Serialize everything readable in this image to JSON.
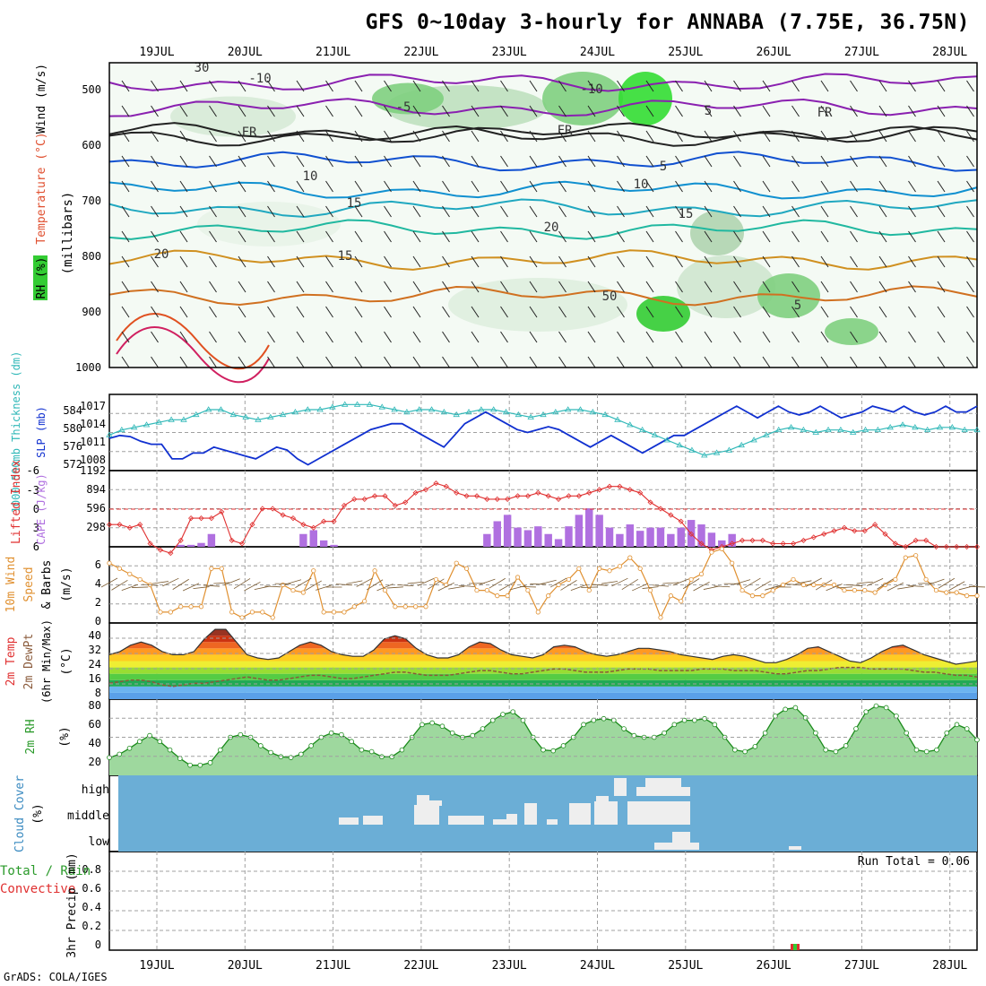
{
  "title": "GFS 0~10day 3-hourly for ANNABA (7.75E, 36.75N)",
  "footer": "GrADS: COLA/IGES",
  "dates": [
    "19JUL",
    "20JUL",
    "21JUL",
    "22JUL",
    "23JUL",
    "24JUL",
    "25JUL",
    "26JUL",
    "27JUL",
    "28JUL"
  ],
  "colors": {
    "frame": "#000000",
    "grid": "#a0a0a0",
    "rh": "#33cc33",
    "temp": "#e08020",
    "cape": "#b070e0",
    "li": "#e03030",
    "slp": "#1030d0",
    "thick": "#30b8b8",
    "wind": "#e09030",
    "cloud_bg": "#6baed6",
    "cloud": "#eeeeee"
  },
  "panels": {
    "upper": {
      "ylabel_rh": "RH (%)",
      "ylabel_temp": "Temperature (°C)",
      "ylabel_wind": "Wind (m/s)",
      "ylabel_p": "(millibars)",
      "p_ticks": [
        "500",
        "600",
        "700",
        "800",
        "900",
        "1000"
      ],
      "contour_labels": [
        "-10",
        "-10",
        "-5",
        "5",
        "FR",
        "FR",
        "FR",
        "5",
        "10",
        "10",
        "15",
        "15",
        "20",
        "20",
        "15",
        "5",
        "30",
        "50"
      ]
    },
    "slp": {
      "ylabel_left": "1000-500mb Thickness (dm)",
      "ylabel_right": "SLP (mb)",
      "ticks_left": [
        "584",
        "580",
        "576",
        "572"
      ],
      "ticks_right": [
        "1017",
        "1014",
        "1011",
        "1008"
      ]
    },
    "cape": {
      "ylabel_left": "Lifted Index",
      "ylabel_right": "CAPE (J/kg)",
      "ticks_left": [
        "-3",
        "0",
        "3",
        "6"
      ],
      "ticks_right": [
        "1192",
        "894",
        "596",
        "298"
      ],
      "top_left_tick": "-6"
    },
    "wind": {
      "ylabel_a": "10m Wind",
      "ylabel_b": "Speed",
      "ylabel_c": "& Barbs",
      "ylabel_d": "(m/s)",
      "ticks": [
        "6",
        "4",
        "2",
        "0"
      ]
    },
    "temp": {
      "ylabel_a": "2m Temp",
      "ylabel_b": "2m DewPt",
      "ylabel_c": "(6hr Min/Max)",
      "ylabel_d": "(°C)",
      "ticks": [
        "40",
        "32",
        "24",
        "16",
        "8"
      ]
    },
    "rh2m": {
      "ylabel_a": "2m RH",
      "ylabel_b": "(%)",
      "ticks": [
        "80",
        "60",
        "40",
        "20"
      ]
    },
    "cloud": {
      "ylabel_a": "Cloud Cover",
      "ylabel_b": "(%)",
      "levels": [
        "high",
        "middle",
        "low"
      ]
    },
    "precip": {
      "ylabel_a": "Total / Rain",
      "ylabel_b": "Convective",
      "ylabel_c": "3hr Precip (mm)",
      "ticks": [
        "0.8",
        "0.6",
        "0.4",
        "0.2",
        "0"
      ],
      "run_total": "Run Total = 0.06"
    }
  },
  "chart_data": [
    {
      "type": "area",
      "name": "2m RH",
      "x_unit": "3-hourly steps from 18JUL 18Z",
      "ylim": [
        0,
        90
      ],
      "values": [
        21,
        25,
        32,
        40,
        47,
        40,
        30,
        20,
        12,
        12,
        15,
        30,
        45,
        48,
        45,
        35,
        27,
        22,
        21,
        25,
        35,
        45,
        50,
        48,
        40,
        30,
        28,
        22,
        22,
        30,
        45,
        60,
        62,
        58,
        50,
        45,
        47,
        55,
        65,
        72,
        75,
        65,
        45,
        30,
        29,
        35,
        45,
        60,
        65,
        67,
        65,
        55,
        47,
        45,
        45,
        50,
        60,
        65,
        65,
        67,
        60,
        45,
        30,
        28,
        34,
        50,
        70,
        78,
        80,
        68,
        50,
        30,
        28,
        35,
        55,
        75,
        82,
        80,
        70,
        50,
        30,
        28,
        30,
        50,
        60,
        55,
        42
      ]
    },
    {
      "type": "line",
      "name": "10m Wind Speed",
      "ylim": [
        0,
        7
      ],
      "values": [
        5.5,
        5,
        4.5,
        4,
        3.5,
        1,
        1,
        1.5,
        1.5,
        1.5,
        5,
        5,
        1,
        0.5,
        1,
        1,
        0.5,
        3.5,
        3,
        2.8,
        4.8,
        1,
        1,
        1,
        1.5,
        2,
        4.8,
        3,
        1.5,
        1.5,
        1.5,
        1.5,
        4,
        3.5,
        5.5,
        5,
        3,
        3,
        2.5,
        2.5,
        4.2,
        3,
        1,
        2.5,
        3.5,
        4,
        5,
        3,
        5,
        4.8,
        5.2,
        6,
        5,
        3,
        0.5,
        2.5,
        2,
        4,
        4.5,
        6.5,
        6.8,
        5.5,
        3,
        2.5,
        2.5,
        3,
        3.5,
        4,
        3.5,
        3.5,
        3.5,
        3.5,
        3,
        3,
        3,
        2.8,
        3.5,
        4,
        6,
        6.2,
        4,
        3,
        2.8,
        2.8,
        2.5,
        2.5
      ]
    },
    {
      "type": "line",
      "name": "Lifted Index",
      "ylim": [
        -6,
        6
      ],
      "values": [
        2.5,
        2.5,
        3,
        2.5,
        5.5,
        6.5,
        7,
        5,
        1.5,
        1.5,
        1.5,
        0.5,
        5,
        5.5,
        2.5,
        0,
        0,
        1,
        1.5,
        2.5,
        3,
        2,
        2,
        -0.5,
        -1.5,
        -1.5,
        -2,
        -2,
        -0.5,
        -1,
        -2.5,
        -3,
        -4,
        -3.5,
        -2.5,
        -2,
        -2,
        -1.5,
        -1.5,
        -1.5,
        -2,
        -2,
        -2.5,
        -2,
        -1.5,
        -2,
        -2,
        -2.5,
        -3,
        -3.5,
        -3.5,
        -3,
        -2.5,
        -1,
        0,
        1,
        2,
        4,
        5.5,
        6.5,
        6,
        5.5,
        5,
        5,
        5,
        5.5,
        5.5,
        5.5,
        5,
        4.5,
        4,
        3.5,
        3,
        3.5,
        3.5,
        2.5,
        4,
        5.5,
        6,
        5,
        5,
        6,
        6,
        6,
        6,
        6
      ]
    },
    {
      "type": "bar",
      "name": "CAPE",
      "ylim": [
        0,
        1192
      ],
      "values": [
        0,
        0,
        0,
        0,
        0,
        0,
        0,
        30,
        30,
        60,
        200,
        0,
        0,
        0,
        0,
        0,
        0,
        0,
        0,
        200,
        260,
        100,
        30,
        0,
        0,
        0,
        0,
        0,
        0,
        0,
        0,
        0,
        0,
        0,
        0,
        0,
        0,
        200,
        400,
        500,
        300,
        260,
        320,
        200,
        120,
        320,
        500,
        600,
        500,
        300,
        200,
        350,
        250,
        300,
        300,
        200,
        300,
        420,
        350,
        220,
        100,
        200,
        0,
        0,
        0,
        0,
        0,
        0,
        0,
        0,
        0,
        0,
        0,
        0,
        0,
        0,
        0,
        0,
        0,
        0,
        0,
        0,
        0,
        0,
        0,
        0
      ]
    },
    {
      "type": "line",
      "name": "SLP",
      "ylim": [
        1006,
        1019
      ],
      "values": [
        1011.5,
        1012,
        1011.8,
        1011,
        1010.5,
        1010.5,
        1008,
        1008,
        1009,
        1009,
        1010,
        1009.5,
        1009,
        1008.5,
        1008,
        1009,
        1010,
        1009.5,
        1008,
        1007,
        1008,
        1009,
        1010,
        1011,
        1012,
        1013,
        1013.5,
        1014,
        1014,
        1013,
        1012,
        1011,
        1010,
        1012,
        1014,
        1015,
        1016,
        1015,
        1014,
        1013,
        1012.5,
        1013,
        1013.5,
        1013,
        1012,
        1011,
        1010,
        1011,
        1012,
        1011,
        1010,
        1009,
        1010,
        1011,
        1012,
        1012,
        1013,
        1014,
        1015,
        1016,
        1017,
        1016,
        1015,
        1016,
        1017,
        1016,
        1015.5,
        1016,
        1017,
        1016,
        1015,
        1015.5,
        1016,
        1017,
        1016.5,
        1016,
        1017,
        1016,
        1015.5,
        1016,
        1017,
        1016,
        1016,
        1017
      ]
    },
    {
      "type": "line",
      "name": "1000-500mb Thickness",
      "ylim": [
        572,
        587
      ],
      "values": [
        579,
        580,
        580.5,
        581,
        581.5,
        582,
        582,
        583,
        584,
        584,
        583,
        582.5,
        582,
        582.5,
        583,
        583.5,
        584,
        584,
        584.5,
        585,
        585,
        585,
        584.5,
        584,
        583.5,
        584,
        584,
        583.5,
        583,
        583.5,
        584,
        584,
        583.5,
        583,
        582.5,
        583,
        583.5,
        584,
        584,
        583.5,
        583,
        582,
        581,
        580,
        579,
        578,
        577,
        576,
        575,
        575.5,
        576,
        577,
        578,
        579,
        580,
        580.5,
        580,
        579.5,
        580,
        580,
        579.5,
        580,
        580,
        580.5,
        581,
        580.5,
        580,
        580.5,
        580.5,
        580,
        580
      ]
    },
    {
      "type": "area",
      "name": "2m Temp",
      "ylim": [
        0,
        48
      ],
      "values": [
        28,
        30,
        34,
        36,
        34,
        30,
        28,
        28,
        30,
        38,
        44,
        44,
        36,
        28,
        26,
        25,
        26,
        30,
        34,
        36,
        34,
        30,
        28,
        27,
        27,
        31,
        38,
        40,
        38,
        32,
        28,
        26,
        26,
        28,
        33,
        36,
        35,
        31,
        28,
        27,
        26,
        28,
        33,
        34,
        33,
        30,
        28,
        27,
        28,
        30,
        32,
        32,
        31,
        30,
        28,
        27,
        26,
        25,
        27,
        28,
        27,
        25,
        23,
        23,
        25,
        28,
        32,
        33,
        30,
        27,
        24,
        23,
        26,
        30,
        33,
        34,
        31,
        28,
        26,
        24,
        22,
        23,
        24
      ]
    },
    {
      "type": "line",
      "name": "2m DewPt",
      "ylim": [
        0,
        48
      ],
      "values": [
        10,
        11,
        12,
        12,
        11,
        9,
        8,
        9,
        10,
        10,
        11,
        12,
        13,
        14,
        13,
        12,
        12,
        13,
        14,
        15,
        15,
        14,
        13,
        13,
        14,
        15,
        16,
        17,
        17,
        16,
        15,
        15,
        15,
        16,
        17,
        18,
        18,
        17,
        16,
        16,
        17,
        18,
        19,
        19,
        18,
        17,
        17,
        17,
        18,
        19,
        19,
        19,
        18,
        18,
        18,
        18,
        19,
        19,
        19,
        18,
        18,
        18,
        17,
        16,
        16,
        17,
        18,
        18,
        19,
        20,
        20,
        20,
        19,
        19,
        19,
        19,
        18,
        17,
        17,
        16,
        15,
        15,
        14
      ]
    },
    {
      "type": "bar",
      "name": "3hr Precip",
      "ylim": [
        0,
        1
      ],
      "values": [
        0.02
      ]
    }
  ]
}
